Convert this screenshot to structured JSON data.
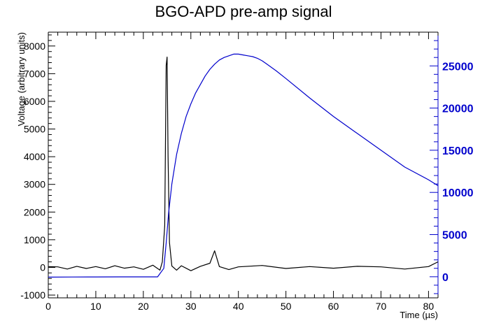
{
  "chart_data": {
    "type": "line",
    "title": "BGO-APD pre-amp signal",
    "xlabel": "Time (µs)",
    "ylabel": "Voltage (arbitrary units)",
    "xlim": [
      0,
      82
    ],
    "ylim": [
      -1100,
      8500
    ],
    "y2lim": [
      -2500,
      29000
    ],
    "x_ticks": [
      0,
      10,
      20,
      30,
      40,
      50,
      60,
      70,
      80
    ],
    "y_ticks": [
      -1000,
      0,
      1000,
      2000,
      3000,
      4000,
      5000,
      6000,
      7000,
      8000
    ],
    "y2_ticks": [
      0,
      5000,
      10000,
      15000,
      20000,
      25000
    ],
    "grid": false,
    "series": [
      {
        "axis": "left",
        "color": "#000000",
        "x": [
          0,
          2,
          4,
          6,
          8,
          10,
          12,
          14,
          16,
          18,
          20,
          22,
          23.5,
          24,
          24.5,
          24.8,
          25,
          25.2,
          25.5,
          26,
          27,
          28,
          30,
          32,
          34,
          35,
          36,
          38,
          40,
          45,
          50,
          55,
          60,
          65,
          70,
          75,
          80,
          82
        ],
        "y": [
          30,
          20,
          -60,
          40,
          -40,
          30,
          -50,
          60,
          -30,
          20,
          -70,
          80,
          -100,
          200,
          1500,
          7300,
          7600,
          4000,
          900,
          50,
          -100,
          60,
          -120,
          40,
          150,
          600,
          30,
          -80,
          20,
          70,
          -40,
          30,
          -30,
          40,
          20,
          -60,
          30,
          200
        ]
      },
      {
        "axis": "right",
        "color": "#0000cc",
        "x": [
          0,
          5,
          10,
          15,
          20,
          23,
          24.3,
          24.8,
          25.3,
          26,
          27,
          28,
          29,
          30,
          31,
          32,
          33,
          34,
          35,
          36,
          37,
          38,
          39,
          40,
          41,
          42,
          43,
          44,
          45,
          46,
          48,
          50,
          55,
          60,
          65,
          70,
          75,
          80,
          82
        ],
        "y": [
          -50,
          -30,
          -20,
          -10,
          -10,
          -10,
          1000,
          4000,
          7500,
          11000,
          14500,
          17000,
          19000,
          20500,
          21800,
          22800,
          23800,
          24600,
          25200,
          25700,
          26000,
          26200,
          26400,
          26400,
          26300,
          26200,
          26100,
          25900,
          25600,
          25200,
          24400,
          23500,
          21200,
          19000,
          17000,
          15000,
          13000,
          11500,
          10800
        ]
      }
    ]
  }
}
